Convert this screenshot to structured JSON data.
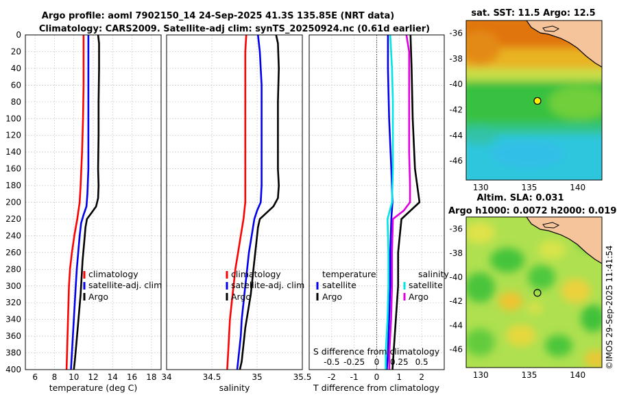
{
  "title_line1": "Argo profile: aoml 7902150_14 24-Sep-2025 41.3S 135.85E (NRT data)",
  "title_line2": "Climatology: CARS2009. Satellite-adj clim: synTS_20250924.nc (0.61d earlier)",
  "depth_ticks": [
    "0",
    "20",
    "40",
    "60",
    "80",
    "100",
    "120",
    "140",
    "160",
    "180",
    "200",
    "220",
    "240",
    "260",
    "280",
    "300",
    "320",
    "340",
    "360",
    "380",
    "400"
  ],
  "colors": {
    "clim": "#ff0000",
    "sat": "#0000ee",
    "argo": "#000000",
    "sat_s": "#00e5e5",
    "argo_s": "#e000e0",
    "land": "#f6c49a",
    "coast": "#000000"
  },
  "timestamp": "©IMOS 29-Sep-2025 11:41:54",
  "chart_data": [
    {
      "type": "line",
      "xlabel": "temperature (deg C)",
      "ylabel": "",
      "xlim": [
        5,
        19
      ],
      "ylim": [
        400,
        0
      ],
      "xticks": [
        "6",
        "8",
        "10",
        "12",
        "14",
        "16",
        "18"
      ],
      "legend": [
        "climatology",
        "satellite-adj. clim",
        "Argo"
      ],
      "legend_position": "center-right",
      "series": [
        {
          "name": "climatology",
          "color": "clim",
          "depth": [
            0,
            20,
            60,
            100,
            140,
            180,
            200,
            220,
            240,
            260,
            280,
            300,
            320,
            340,
            360,
            380,
            400
          ],
          "values": [
            11.0,
            11.0,
            11.0,
            10.95,
            10.85,
            10.7,
            10.6,
            10.35,
            10.05,
            9.8,
            9.6,
            9.5,
            9.45,
            9.4,
            9.35,
            9.3,
            9.25
          ]
        },
        {
          "name": "satellite-adj. clim",
          "color": "sat",
          "depth": [
            0,
            40,
            80,
            120,
            160,
            190,
            205,
            215,
            225,
            240,
            260,
            280,
            300,
            320,
            340,
            360,
            380,
            400
          ],
          "values": [
            11.5,
            11.5,
            11.5,
            11.5,
            11.5,
            11.4,
            11.3,
            11.0,
            10.75,
            10.6,
            10.45,
            10.3,
            10.2,
            10.1,
            10.0,
            9.9,
            9.8,
            9.7
          ]
        },
        {
          "name": "Argo",
          "color": "argo",
          "depth": [
            0,
            10,
            40,
            80,
            120,
            160,
            180,
            195,
            205,
            213,
            220,
            230,
            250,
            270,
            290,
            310,
            330,
            350,
            370,
            390,
            400
          ],
          "values": [
            12.5,
            12.6,
            12.6,
            12.55,
            12.55,
            12.5,
            12.55,
            12.5,
            12.3,
            11.8,
            11.35,
            11.2,
            11.05,
            10.9,
            10.8,
            10.7,
            10.55,
            10.4,
            10.25,
            10.1,
            10.0
          ]
        }
      ]
    },
    {
      "type": "line",
      "xlabel": "salinity",
      "ylabel": "",
      "xlim": [
        34,
        35.5
      ],
      "ylim": [
        400,
        0
      ],
      "xticks": [
        "34",
        "34.5",
        "35",
        "35.5"
      ],
      "legend": [
        "climatology",
        "satellite-adj. clim",
        "Argo"
      ],
      "legend_position": "center-right",
      "series": [
        {
          "name": "climatology",
          "color": "clim",
          "depth": [
            0,
            20,
            60,
            100,
            140,
            180,
            200,
            220,
            240,
            260,
            280,
            300,
            320,
            340,
            360,
            380,
            400
          ],
          "values": [
            34.88,
            34.87,
            34.87,
            34.87,
            34.87,
            34.87,
            34.87,
            34.85,
            34.82,
            34.79,
            34.76,
            34.74,
            34.72,
            34.7,
            34.69,
            34.68,
            34.67
          ]
        },
        {
          "name": "satellite-adj. clim",
          "color": "sat",
          "depth": [
            0,
            20,
            40,
            60,
            100,
            140,
            180,
            200,
            210,
            220,
            240,
            260,
            280,
            300,
            320,
            340,
            360,
            380,
            400
          ],
          "values": [
            35.01,
            35.03,
            35.04,
            35.05,
            35.05,
            35.05,
            35.05,
            35.04,
            35.0,
            34.97,
            34.94,
            34.91,
            34.89,
            34.87,
            34.85,
            34.83,
            34.82,
            34.8,
            34.78
          ]
        },
        {
          "name": "Argo",
          "color": "argo",
          "depth": [
            0,
            10,
            40,
            80,
            120,
            160,
            180,
            195,
            205,
            213,
            220,
            230,
            250,
            270,
            290,
            310,
            330,
            350,
            370,
            390,
            400
          ],
          "values": [
            35.21,
            35.23,
            35.24,
            35.23,
            35.23,
            35.23,
            35.24,
            35.23,
            35.18,
            35.1,
            35.03,
            35.01,
            34.99,
            34.97,
            34.95,
            34.93,
            34.9,
            34.87,
            34.85,
            34.83,
            34.81
          ]
        }
      ]
    },
    {
      "type": "line",
      "xlabel": "T difference from climatology",
      "ylabel": "",
      "xlim": [
        -3,
        3
      ],
      "ylim": [
        400,
        0
      ],
      "xticks": [
        "-2",
        "-1",
        "0",
        "1",
        "2"
      ],
      "top_xlabel": "S difference from climatology",
      "top_xticks": [
        "-0.5",
        "-0.25",
        "0",
        "0.25",
        "0.5"
      ],
      "legend_left": [
        "temperature",
        "satellite",
        "Argo"
      ],
      "legend_right": [
        "salinity",
        "satellite",
        "Argo"
      ],
      "series": [
        {
          "name": "temperature satellite",
          "color": "sat",
          "depth": [
            0,
            40,
            100,
            160,
            200,
            220,
            260,
            300,
            340,
            380,
            400
          ],
          "values": [
            0.5,
            0.5,
            0.55,
            0.65,
            0.7,
            0.65,
            0.6,
            0.6,
            0.55,
            0.5,
            0.45
          ]
        },
        {
          "name": "temperature Argo",
          "color": "argo",
          "depth": [
            0,
            40,
            100,
            160,
            200,
            220,
            260,
            300,
            340,
            380,
            400
          ],
          "values": [
            1.5,
            1.55,
            1.6,
            1.7,
            1.9,
            1.1,
            0.95,
            0.95,
            0.85,
            0.75,
            0.7
          ]
        },
        {
          "name": "salinity satellite",
          "color": "sat_s",
          "depth": [
            0,
            40,
            80,
            120,
            160,
            200,
            220,
            260,
            300,
            340,
            380,
            400
          ],
          "values": [
            0.15,
            0.17,
            0.18,
            0.18,
            0.18,
            0.17,
            0.12,
            0.13,
            0.13,
            0.12,
            0.1,
            0.1
          ]
        },
        {
          "name": "salinity Argo",
          "color": "argo_s",
          "depth": [
            0,
            20,
            60,
            100,
            140,
            180,
            200,
            210,
            220,
            260,
            300,
            340,
            380,
            400
          ],
          "values": [
            0.33,
            0.36,
            0.36,
            0.36,
            0.36,
            0.37,
            0.37,
            0.3,
            0.18,
            0.17,
            0.17,
            0.16,
            0.14,
            0.14
          ]
        }
      ]
    },
    {
      "type": "heatmap",
      "title": "sat. SST: 11.5 Argo: 12.5",
      "xlim": [
        128.5,
        142.5
      ],
      "ylim": [
        -47.5,
        -35
      ],
      "xticks": [
        "130",
        "135",
        "140"
      ],
      "yticks": [
        "-36",
        "-38",
        "-40",
        "-42",
        "-44",
        "-46"
      ],
      "argo_position": [
        135.85,
        -41.3
      ]
    },
    {
      "type": "heatmap",
      "title": "Altim. SLA: 0.031",
      "subtitle": "Argo h1000: 0.0072 h2000: 0.019",
      "xlim": [
        128.5,
        142.5
      ],
      "ylim": [
        -47.5,
        -35
      ],
      "xticks": [
        "130",
        "135",
        "140"
      ],
      "yticks": [
        "-36",
        "-38",
        "-40",
        "-42",
        "-44",
        "-46"
      ],
      "argo_position": [
        135.85,
        -41.3
      ]
    }
  ]
}
